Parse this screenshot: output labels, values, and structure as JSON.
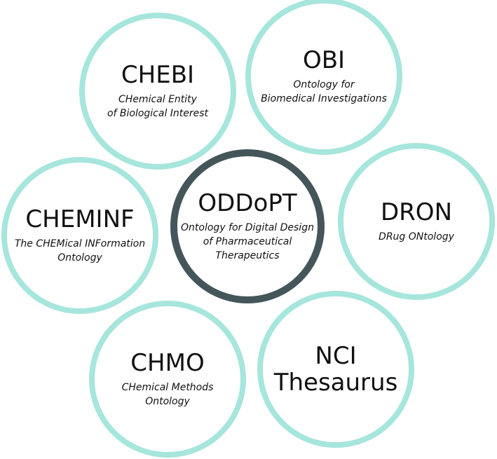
{
  "colors": {
    "outer_ring": "#a6e6dc",
    "center_ring": "#44565a",
    "text": "#111111",
    "background": "#ffffff"
  },
  "nodes": [
    {
      "id": "chebi",
      "abbr_lines": [
        "CHEBI"
      ],
      "full_lines": [
        "CHemical Entity",
        "of Biological Interest"
      ]
    },
    {
      "id": "obi",
      "abbr_lines": [
        "OBI"
      ],
      "full_lines": [
        "Ontology for",
        "Biomedical Investigations"
      ]
    },
    {
      "id": "cheminf",
      "abbr_lines": [
        "CHEMINF"
      ],
      "full_lines": [
        "The CHEMical INFormation",
        "Ontology"
      ]
    },
    {
      "id": "oddopt",
      "abbr_lines": [
        "ODDoPT"
      ],
      "full_lines": [
        "Ontology for Digital Design",
        "of Pharmaceutical",
        "Therapeutics"
      ]
    },
    {
      "id": "dron",
      "abbr_lines": [
        "DRON"
      ],
      "full_lines": [
        "DRug ONtology"
      ]
    },
    {
      "id": "chmo",
      "abbr_lines": [
        "CHMO"
      ],
      "full_lines": [
        "CHemical Methods",
        "Ontology"
      ]
    },
    {
      "id": "nci",
      "abbr_lines": [
        "NCI",
        "Thesaurus"
      ],
      "full_lines": []
    }
  ]
}
